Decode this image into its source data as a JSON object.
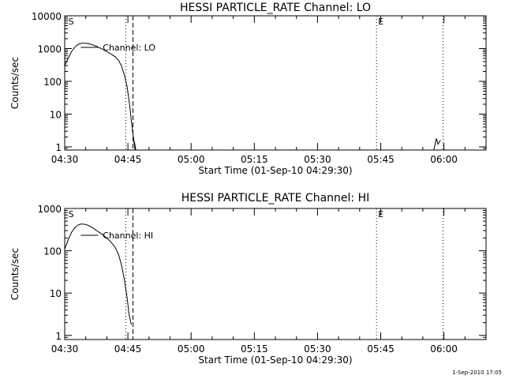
{
  "footer": {
    "timestamp": "1-Sep-2010 17:05"
  },
  "chart_data": [
    {
      "type": "line",
      "title": "HESSI PARTICLE_RATE Channel: LO",
      "ylabel": "Counts/sec",
      "xlabel": "Start Time (01-Sep-10 04:29:30)",
      "x_unit": "minutes after 04:30",
      "xlim": [
        0,
        100
      ],
      "ylim": [
        0.8,
        10000
      ],
      "yscale": "log",
      "x_ticks": [
        {
          "value": 0,
          "label": "04:30"
        },
        {
          "value": 15,
          "label": "04:45"
        },
        {
          "value": 30,
          "label": "05:00"
        },
        {
          "value": 45,
          "label": "05:15"
        },
        {
          "value": 60,
          "label": "05:30"
        },
        {
          "value": 75,
          "label": "05:45"
        },
        {
          "value": 90,
          "label": "06:00"
        }
      ],
      "y_ticks": [
        {
          "value": 1,
          "label": "1"
        },
        {
          "value": 10,
          "label": "10"
        },
        {
          "value": 100,
          "label": "100"
        },
        {
          "value": 1000,
          "label": "1000"
        },
        {
          "value": 10000,
          "label": "10000"
        }
      ],
      "markers": [
        {
          "x": 14.5,
          "style": "dotted"
        },
        {
          "x": 16.2,
          "style": "dashed"
        },
        {
          "x": 74.0,
          "style": "dotted"
        },
        {
          "x": 89.8,
          "style": "dotted"
        }
      ],
      "marker_labels": [
        {
          "x": 0.5,
          "label": "S"
        },
        {
          "x": 74.0,
          "label": "E"
        }
      ],
      "legend": {
        "label": "Channel: LO",
        "placement": "top-left"
      },
      "series": [
        {
          "name": "Channel: LO",
          "segments": [
            [
              [
                -0.5,
                200
              ],
              [
                0,
                300
              ],
              [
                0.8,
                500
              ],
              [
                1.6,
                800
              ],
              [
                2.4,
                1100
              ],
              [
                3.2,
                1350
              ],
              [
                4,
                1450
              ],
              [
                5,
                1450
              ],
              [
                6,
                1380
              ],
              [
                7,
                1250
              ],
              [
                8,
                1100
              ],
              [
                9,
                950
              ],
              [
                10,
                800
              ],
              [
                11,
                680
              ],
              [
                12,
                560
              ],
              [
                12.8,
                430
              ],
              [
                13.5,
                290
              ],
              [
                14.2,
                150
              ],
              [
                14.8,
                70
              ],
              [
                15.4,
                20
              ],
              [
                15.9,
                5
              ],
              [
                16.3,
                2
              ],
              [
                16.7,
                0.8
              ]
            ],
            [
              [
                16.5,
                1.5
              ],
              [
                16.9,
                0.8
              ]
            ],
            [
              [
                87.6,
                0.8
              ],
              [
                88.2,
                1.8
              ],
              [
                88.6,
                1.2
              ],
              [
                89.2,
                1.6
              ]
            ]
          ]
        }
      ]
    },
    {
      "type": "line",
      "title": "HESSI PARTICLE_RATE Channel: HI",
      "ylabel": "Counts/sec",
      "xlabel": "Start Time (01-Sep-10 04:29:30)",
      "x_unit": "minutes after 04:30",
      "xlim": [
        0,
        100
      ],
      "ylim": [
        0.8,
        1000
      ],
      "yscale": "log",
      "x_ticks": [
        {
          "value": 0,
          "label": "04:30"
        },
        {
          "value": 15,
          "label": "04:45"
        },
        {
          "value": 30,
          "label": "05:00"
        },
        {
          "value": 45,
          "label": "05:15"
        },
        {
          "value": 60,
          "label": "05:30"
        },
        {
          "value": 75,
          "label": "05:45"
        },
        {
          "value": 90,
          "label": "06:00"
        }
      ],
      "y_ticks": [
        {
          "value": 1,
          "label": "1"
        },
        {
          "value": 10,
          "label": "10"
        },
        {
          "value": 100,
          "label": "100"
        },
        {
          "value": 1000,
          "label": "1000"
        }
      ],
      "markers": [
        {
          "x": 14.5,
          "style": "dotted"
        },
        {
          "x": 16.2,
          "style": "dashed"
        },
        {
          "x": 74.0,
          "style": "dotted"
        },
        {
          "x": 89.8,
          "style": "dotted"
        }
      ],
      "marker_labels": [
        {
          "x": 0.5,
          "label": "S"
        },
        {
          "x": 74.0,
          "label": "E"
        }
      ],
      "legend": {
        "label": "Channel: HI",
        "placement": "top-left"
      },
      "series": [
        {
          "name": "Channel: HI",
          "segments": [
            [
              [
                -0.5,
                70
              ],
              [
                0,
                110
              ],
              [
                0.8,
                180
              ],
              [
                1.6,
                270
              ],
              [
                2.4,
                350
              ],
              [
                3.2,
                410
              ],
              [
                4,
                430
              ],
              [
                5,
                420
              ],
              [
                6,
                380
              ],
              [
                7,
                330
              ],
              [
                8,
                280
              ],
              [
                9,
                240
              ],
              [
                10,
                200
              ],
              [
                11,
                160
              ],
              [
                12,
                120
              ],
              [
                12.8,
                80
              ],
              [
                13.5,
                45
              ],
              [
                14.2,
                20
              ],
              [
                14.8,
                8
              ],
              [
                15.3,
                3
              ],
              [
                15.8,
                1.8
              ]
            ]
          ]
        }
      ]
    }
  ]
}
